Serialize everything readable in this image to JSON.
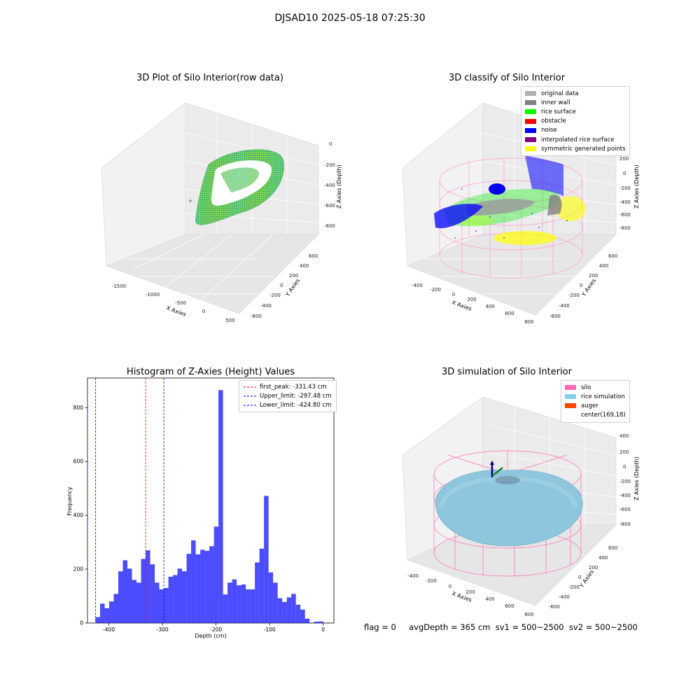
{
  "suptitle": "DJSAD10 2025-05-18 07:25:30",
  "panels": {
    "raw": {
      "title": "3D Plot of Silo Interior(row data)",
      "xlabel": "X Axies",
      "ylabel": "Y Axies",
      "zlabel": "Z Axies (Depth)",
      "xticks": [
        "-1500",
        "-1000",
        "-500",
        "0",
        "500"
      ],
      "yticks": [
        "-600",
        "-400",
        "-200",
        "0",
        "200",
        "400",
        "600"
      ],
      "zticks": [
        "0",
        "-200",
        "-400",
        "-600",
        "-800"
      ]
    },
    "classify": {
      "title": "3D classify of Silo Interior",
      "xlabel": "X Axies",
      "ylabel": "Y Axies",
      "zlabel": "Z Axies (Depth)",
      "xticks": [
        "-400",
        "-200",
        "0",
        "200",
        "400",
        "600",
        "800"
      ],
      "yticks": [
        "-600",
        "-400",
        "-200",
        "0",
        "200",
        "400",
        "600"
      ],
      "zticks": [
        "200",
        "0",
        "-200",
        "-400",
        "-600",
        "-800"
      ],
      "zticks_top": "400",
      "legend": [
        {
          "label": "original data",
          "color": "#b0b0b0"
        },
        {
          "label": "inner wall",
          "color": "#808080"
        },
        {
          "label": "rice surface",
          "color": "#00ff00"
        },
        {
          "label": "obstacle",
          "color": "#ff0000"
        },
        {
          "label": "noise",
          "color": "#0000ff"
        },
        {
          "label": "interpolated rice surface",
          "color": "#800080"
        },
        {
          "label": "symmetric generated points",
          "color": "#ffff00"
        }
      ]
    },
    "simulation": {
      "title": "3D simulation of Silo Interior",
      "xlabel": "X Axies",
      "ylabel": "Y Axies",
      "zlabel": "Z Axies (Depth)",
      "xticks": [
        "-400",
        "-200",
        "0",
        "200",
        "400",
        "600",
        "800"
      ],
      "yticks": [
        "-600",
        "-400",
        "-200",
        "0",
        "200",
        "400",
        "600"
      ],
      "zticks": [
        "400",
        "200",
        "0",
        "-200",
        "-400",
        "-600",
        "-800"
      ],
      "legend": [
        {
          "label": "silo",
          "color": "#ff69b4"
        },
        {
          "label": "rice simulation",
          "color": "#87ceeb"
        },
        {
          "label": "auger",
          "color": "#ff4500"
        },
        {
          "label": "center(169,18)",
          "color": "#ffffff"
        }
      ]
    }
  },
  "footer": "flag = 0     avgDepth = 365 cm  sv1 = 500~2500  sv2 = 500~2500",
  "chart_data": {
    "type": "bar",
    "title": "Histogram of Z-Axies (Height) Values",
    "xlabel": "Depth (cm)",
    "ylabel": "Frequency",
    "xlim": [
      -440,
      20
    ],
    "ylim": [
      0,
      910
    ],
    "xticks": [
      -400,
      -300,
      -200,
      -100,
      0
    ],
    "yticks": [
      0,
      200,
      400,
      600,
      800
    ],
    "bar_color": "#0000ff",
    "bin_width": 8.5,
    "bin_starts": [
      -425,
      -416.5,
      -408,
      -399.5,
      -391,
      -382.5,
      -374,
      -365.5,
      -357,
      -348.5,
      -340,
      -331.5,
      -323,
      -314.5,
      -306,
      -297.5,
      -289,
      -280.5,
      -272,
      -263.5,
      -255,
      -246.5,
      -238,
      -229.5,
      -221,
      -212.5,
      -204,
      -195.5,
      -187,
      -178.5,
      -170,
      -161.5,
      -153,
      -144.5,
      -136,
      -127.5,
      -119,
      -110.5,
      -102,
      -93.5,
      -85,
      -76.5,
      -68,
      -59.5,
      -51,
      -42.5,
      -34,
      -25.5,
      -17,
      -8.5
    ],
    "values": [
      22,
      72,
      55,
      80,
      108,
      192,
      233,
      202,
      160,
      150,
      238,
      270,
      218,
      150,
      125,
      130,
      172,
      178,
      202,
      192,
      257,
      307,
      255,
      272,
      268,
      285,
      358,
      865,
      106,
      150,
      162,
      140,
      143,
      125,
      125,
      225,
      276,
      472,
      188,
      150,
      92,
      78,
      95,
      108,
      68,
      50,
      16,
      0,
      5,
      6
    ],
    "lines": [
      {
        "name": "first_peak: -331.43 cm",
        "x": -331.43,
        "color": "#ff0000"
      },
      {
        "name": "Upper_limit: -297.48 cm",
        "x": -297.48,
        "color": "#0000ff"
      },
      {
        "name": "Lower_limit: -424.80 cm",
        "x": -424.8,
        "color": "#0000ff"
      }
    ],
    "legend_loc": "upper right"
  }
}
